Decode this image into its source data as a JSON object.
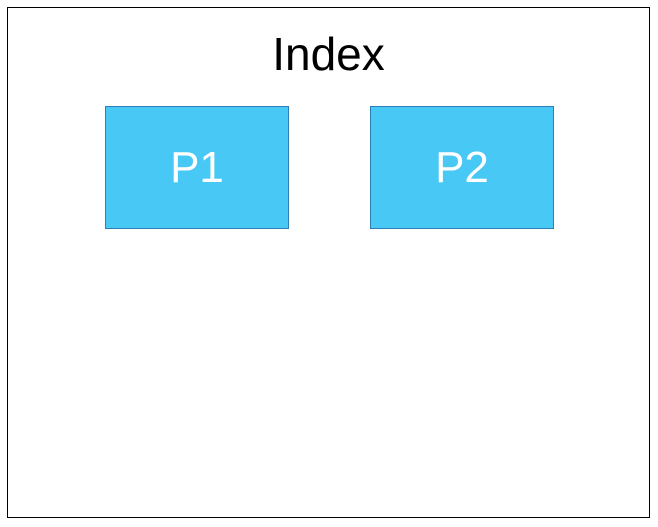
{
  "diagram": {
    "title": "Index",
    "nodes": [
      {
        "label": "P1",
        "fill": "#47C8F5"
      },
      {
        "label": "P2",
        "fill": "#47C8F5"
      }
    ]
  },
  "colors": {
    "node_fill": "#47C8F5",
    "node_text": "#FFFFFF",
    "frame_border": "#000000",
    "background": "#FFFFFF"
  }
}
